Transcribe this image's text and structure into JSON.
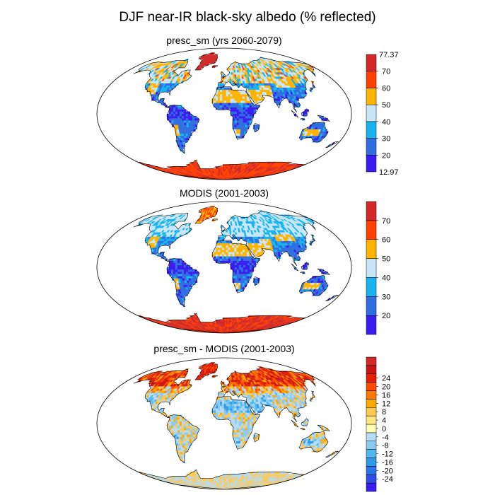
{
  "figure": {
    "title": "DJF near-IR black-sky albedo (% reflected)"
  },
  "colors": {
    "ocean": "#ffffff",
    "outline": "#000000"
  },
  "panels": [
    {
      "id": "panel-presc-sm",
      "title": "presc_sm (yrs 2060-2079)",
      "scheme": "abs",
      "colorbar": {
        "colors": [
          "#3a1cf0",
          "#2f6ee0",
          "#16b4f0",
          "#c8e6f8",
          "#ffb400",
          "#ff4000",
          "#d22828"
        ],
        "labels": [
          "20",
          "30",
          "40",
          "50",
          "60",
          "70"
        ],
        "min_label": "12.97",
        "max_label": "77.37"
      }
    },
    {
      "id": "panel-modis",
      "title": "MODIS (2001-2003)",
      "scheme": "abs",
      "colorbar": {
        "colors": [
          "#3a1cf0",
          "#2f6ee0",
          "#16b4f0",
          "#c8e6f8",
          "#ffb400",
          "#ff4000",
          "#d22828"
        ],
        "labels": [
          "20",
          "30",
          "40",
          "50",
          "60",
          "70"
        ],
        "min_label": "",
        "max_label": ""
      }
    },
    {
      "id": "panel-diff",
      "title": "presc_sm - MODIS (2001-2003)",
      "scheme": "diff",
      "colorbar": {
        "colors": [
          "#3a1cf0",
          "#2e4de6",
          "#2b74e6",
          "#2e9ae8",
          "#50b8f0",
          "#8ccaf2",
          "#b4dcf6",
          "#ffffb4",
          "#ffe680",
          "#ffc850",
          "#ffaa00",
          "#ff7800",
          "#ff4b00",
          "#e61e00",
          "#c81414",
          "#d22828"
        ],
        "labels": [
          "-24",
          "-20",
          "-16",
          "-12",
          "-8",
          "-4",
          "0",
          "4",
          "8",
          "12",
          "16",
          "20",
          "24"
        ],
        "min_label": "",
        "max_label": ""
      }
    }
  ]
}
